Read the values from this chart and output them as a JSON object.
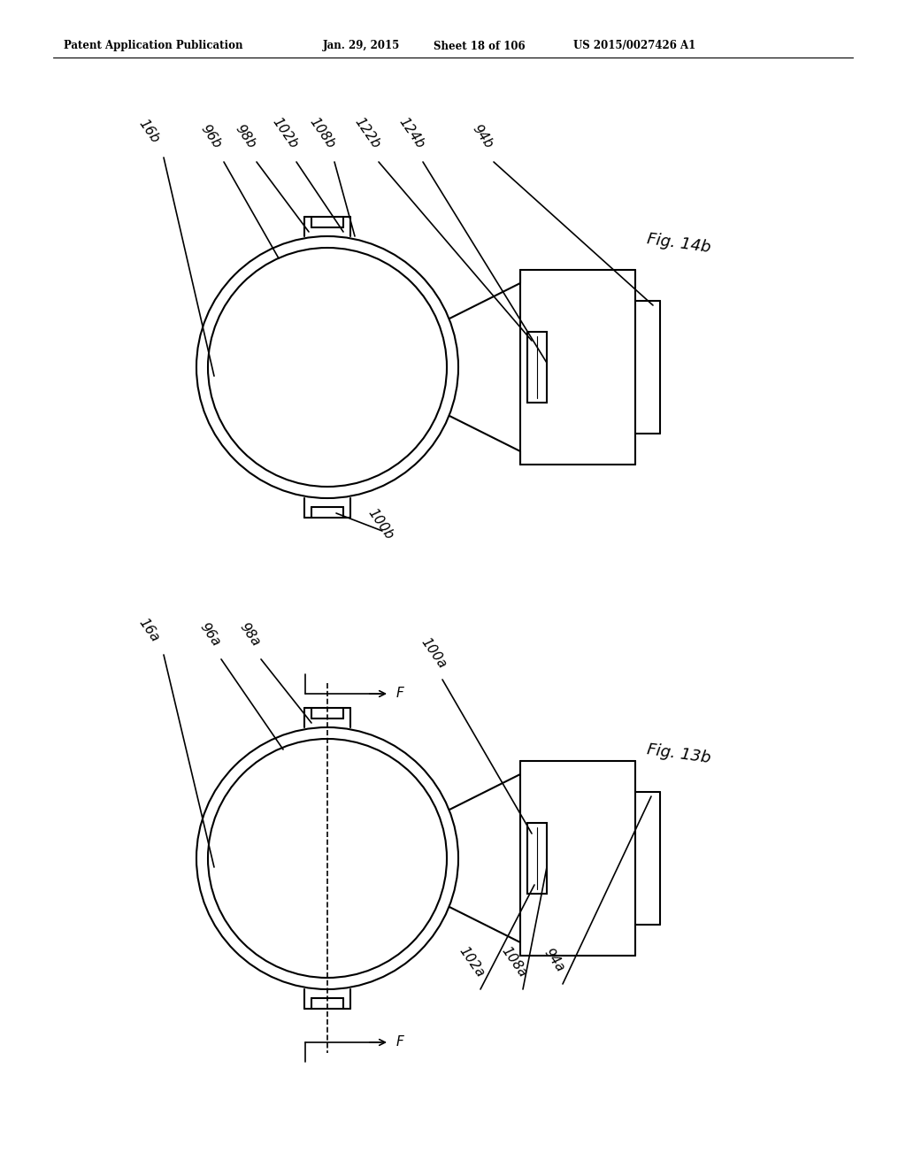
{
  "bg_color": "#ffffff",
  "header_text": "Patent Application Publication",
  "header_date": "Jan. 29, 2015",
  "header_sheet": "Sheet 18 of 106",
  "header_patent": "US 2015/0027426 A1",
  "fig_top_label": "Fig. 14b",
  "fig_bot_label": "Fig. 13b",
  "top_labels": [
    "16b",
    "96b",
    "98b",
    "102b",
    "108b",
    "122b",
    "124b",
    "94b"
  ],
  "label_100b": "100b",
  "bot_labels": [
    "16a",
    "96a",
    "98a",
    "100a",
    "102a",
    "108a",
    "94a"
  ],
  "F_label": "F"
}
